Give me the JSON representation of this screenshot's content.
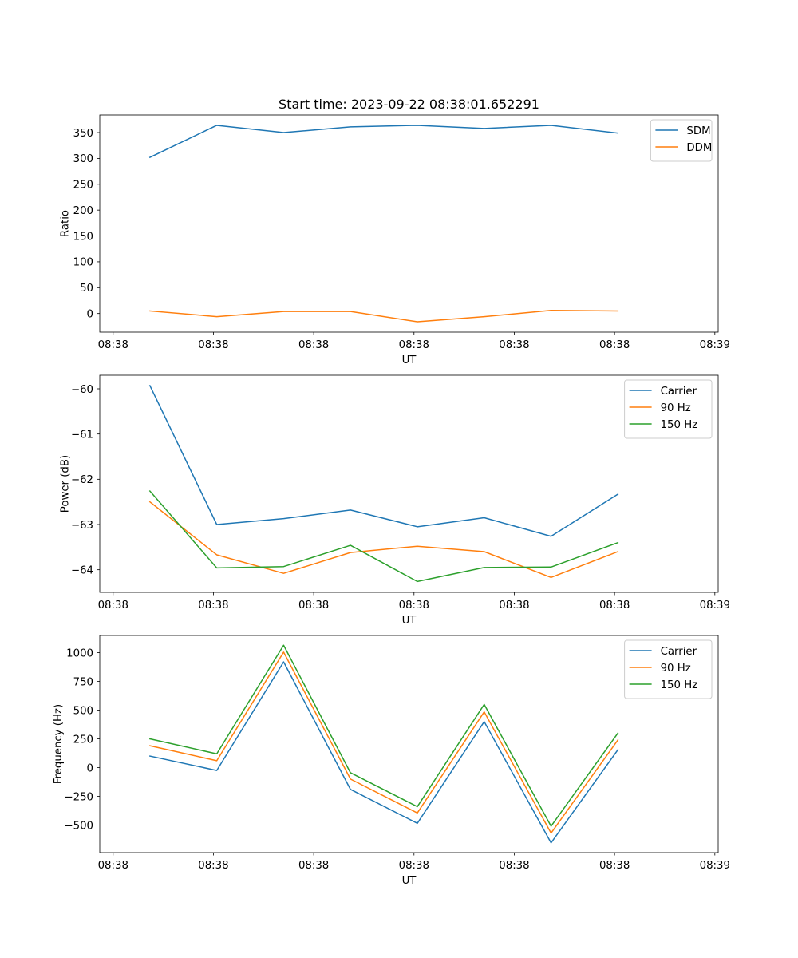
{
  "figure_title": "Start time: 2023-09-22 08:38:01.652291",
  "colors": {
    "blue": "#1f77b4",
    "orange": "#ff7f0e",
    "green": "#2ca02c"
  },
  "chart_data": [
    {
      "type": "line",
      "title": "Start time: 2023-09-22 08:38:01.652291",
      "xlabel": "UT",
      "ylabel": "Ratio",
      "x": [
        1,
        2,
        3,
        4,
        5,
        6,
        7,
        8
      ],
      "xlim": [
        0.25,
        9.5
      ],
      "ylim": [
        -36,
        384
      ],
      "xticks": [
        0.45,
        1.95,
        3.45,
        4.95,
        6.45,
        7.95,
        9.45
      ],
      "xtick_labels": [
        "08:38",
        "08:38",
        "08:38",
        "08:38",
        "08:38",
        "08:38",
        "08:39"
      ],
      "yticks": [
        0,
        50,
        100,
        150,
        200,
        250,
        300,
        350
      ],
      "ytick_labels": [
        "0",
        "50",
        "100",
        "150",
        "200",
        "250",
        "300",
        "350"
      ],
      "legend_loc": "top-right",
      "series": [
        {
          "name": "SDM",
          "color": "#1f77b4",
          "values": [
            302,
            364,
            350,
            361,
            364,
            358,
            364,
            349
          ]
        },
        {
          "name": "DDM",
          "color": "#ff7f0e",
          "values": [
            5,
            -6,
            4,
            4,
            -16,
            -6,
            6,
            5
          ]
        }
      ]
    },
    {
      "type": "line",
      "title": "",
      "xlabel": "UT",
      "ylabel": "Power (dB)",
      "x": [
        1,
        2,
        3,
        4,
        5,
        6,
        7,
        8
      ],
      "xlim": [
        0.25,
        9.5
      ],
      "ylim": [
        -64.5,
        -59.7
      ],
      "xticks": [
        0.45,
        1.95,
        3.45,
        4.95,
        6.45,
        7.95,
        9.45
      ],
      "xtick_labels": [
        "08:38",
        "08:38",
        "08:38",
        "08:38",
        "08:38",
        "08:38",
        "08:39"
      ],
      "yticks": [
        -64,
        -63,
        -62,
        -61,
        -60
      ],
      "ytick_labels": [
        "−64",
        "−63",
        "−62",
        "−61",
        "−60"
      ],
      "legend_loc": "top-right",
      "series": [
        {
          "name": "Carrier",
          "color": "#1f77b4",
          "values": [
            -59.93,
            -63.0,
            -62.87,
            -62.68,
            -63.05,
            -62.85,
            -63.26,
            -62.33
          ]
        },
        {
          "name": "90 Hz",
          "color": "#ff7f0e",
          "values": [
            -62.5,
            -63.67,
            -64.08,
            -63.62,
            -63.48,
            -63.6,
            -64.17,
            -63.6
          ]
        },
        {
          "name": "150 Hz",
          "color": "#2ca02c",
          "values": [
            -62.26,
            -63.96,
            -63.93,
            -63.46,
            -64.26,
            -63.95,
            -63.94,
            -63.4
          ]
        }
      ]
    },
    {
      "type": "line",
      "title": "",
      "xlabel": "UT",
      "ylabel": "Frequency (Hz)",
      "x": [
        1,
        2,
        3,
        4,
        5,
        6,
        7,
        8
      ],
      "xlim": [
        0.25,
        9.5
      ],
      "ylim": [
        -740,
        1150
      ],
      "xticks": [
        0.45,
        1.95,
        3.45,
        4.95,
        6.45,
        7.95,
        9.45
      ],
      "xtick_labels": [
        "08:38",
        "08:38",
        "08:38",
        "08:38",
        "08:38",
        "08:38",
        "08:39"
      ],
      "yticks": [
        -500,
        -250,
        0,
        250,
        500,
        750,
        1000
      ],
      "ytick_labels": [
        "−500",
        "−250",
        "0",
        "250",
        "500",
        "750",
        "1000"
      ],
      "legend_loc": "top-right",
      "series": [
        {
          "name": "Carrier",
          "color": "#1f77b4",
          "values": [
            100,
            -25,
            920,
            -190,
            -485,
            400,
            -655,
            155
          ]
        },
        {
          "name": "90 Hz",
          "color": "#ff7f0e",
          "values": [
            190,
            60,
            1005,
            -100,
            -395,
            485,
            -570,
            240
          ]
        },
        {
          "name": "150 Hz",
          "color": "#2ca02c",
          "values": [
            250,
            120,
            1065,
            -45,
            -340,
            550,
            -510,
            300
          ]
        }
      ]
    }
  ]
}
